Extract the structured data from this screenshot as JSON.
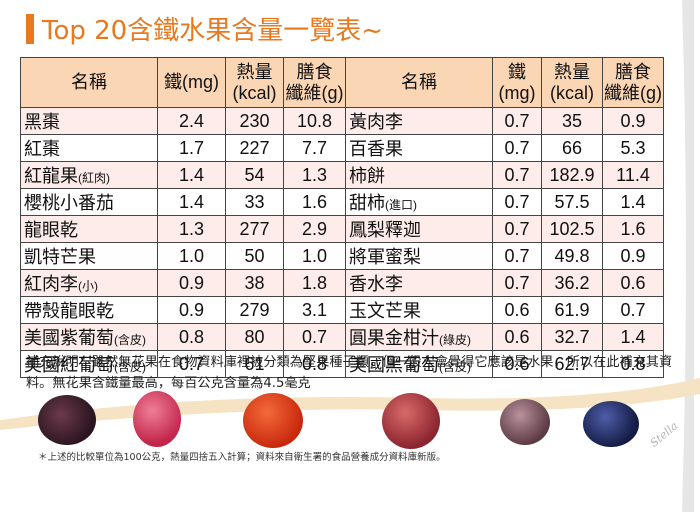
{
  "title": "Top 20含鐵水果含量一覽表~",
  "headers": {
    "name": "名稱",
    "iron_left": "鐵(mg)",
    "iron_right_1": "鐵",
    "iron_right_2": "(mg)",
    "heat_1": "熱量",
    "heat_2": "(kcal)",
    "fiber_1": "膳食",
    "fiber_2": "纖維(g)"
  },
  "rows": [
    {
      "l_name": "黑棗",
      "l_note": "",
      "l_iron": "2.4",
      "l_heat": "230",
      "l_fiber": "10.8",
      "r_name": "黃肉李",
      "r_note": "",
      "r_iron": "0.7",
      "r_heat": "35",
      "r_fiber": "0.9"
    },
    {
      "l_name": "紅棗",
      "l_note": "",
      "l_iron": "1.7",
      "l_heat": "227",
      "l_fiber": "7.7",
      "r_name": "百香果",
      "r_note": "",
      "r_iron": "0.7",
      "r_heat": "66",
      "r_fiber": "5.3"
    },
    {
      "l_name": "紅龍果",
      "l_note": "(紅肉)",
      "l_iron": "1.4",
      "l_heat": "54",
      "l_fiber": "1.3",
      "r_name": "柿餅",
      "r_note": "",
      "r_iron": "0.7",
      "r_heat": "182.9",
      "r_fiber": "11.4"
    },
    {
      "l_name": "櫻桃小番茄",
      "l_note": "",
      "l_iron": "1.4",
      "l_heat": "33",
      "l_fiber": "1.6",
      "r_name": "甜柿",
      "r_note": "(進口)",
      "r_iron": "0.7",
      "r_heat": "57.5",
      "r_fiber": "1.4"
    },
    {
      "l_name": "龍眼乾",
      "l_note": "",
      "l_iron": "1.3",
      "l_heat": "277",
      "l_fiber": "2.9",
      "r_name": "鳳梨釋迦",
      "r_note": "",
      "r_iron": "0.7",
      "r_heat": "102.5",
      "r_fiber": "1.6"
    },
    {
      "l_name": "凱特芒果",
      "l_note": "",
      "l_iron": "1.0",
      "l_heat": "50",
      "l_fiber": "1.0",
      "r_name": "將軍蜜梨",
      "r_note": "",
      "r_iron": "0.7",
      "r_heat": "49.8",
      "r_fiber": "0.9"
    },
    {
      "l_name": "紅肉李",
      "l_note": "(小)",
      "l_iron": "0.9",
      "l_heat": "38",
      "l_fiber": "1.8",
      "r_name": "香水李",
      "r_note": "",
      "r_iron": "0.7",
      "r_heat": "36.2",
      "r_fiber": "0.6"
    },
    {
      "l_name": "帶殼龍眼乾",
      "l_note": "",
      "l_iron": "0.9",
      "l_heat": "279",
      "l_fiber": "3.1",
      "r_name": "玉文芒果",
      "r_note": "",
      "r_iron": "0.6",
      "r_heat": "61.9",
      "r_fiber": "0.7"
    },
    {
      "l_name": "美國紫葡萄",
      "l_note": "(含皮)",
      "l_iron": "0.8",
      "l_heat": "80",
      "l_fiber": "0.7",
      "r_name": "圓果金柑汁",
      "r_note": "(綠皮)",
      "r_iron": "0.6",
      "r_heat": "32.7",
      "r_fiber": "1.4"
    },
    {
      "l_name": "美國紅葡萄",
      "l_note": "(含皮)",
      "l_iron": "0.7",
      "l_heat": "61",
      "l_fiber": "0.8",
      "r_name": "美國黑葡萄",
      "r_note": "(含皮)",
      "r_iron": "0.6",
      "r_heat": "62.7",
      "r_fiber": "0.8"
    }
  ],
  "description": "補充說明：雖然無花果在食物資料庫裡被分類為堅果種子類，但一般人會覺得它應該是水果，所以在此補充其資料。無花果含鐵量最高，每百公克含量為4.5毫克",
  "footnote": "＊上述的比較單位為100公克，熱量四捨五入計算；資料來自衛生署的食品營養成分資料庫新版。",
  "signature": "Stella",
  "colors": {
    "accent": "#e8791f",
    "header_bg": "#fbd6b5",
    "row_alt": "#fdecea"
  }
}
